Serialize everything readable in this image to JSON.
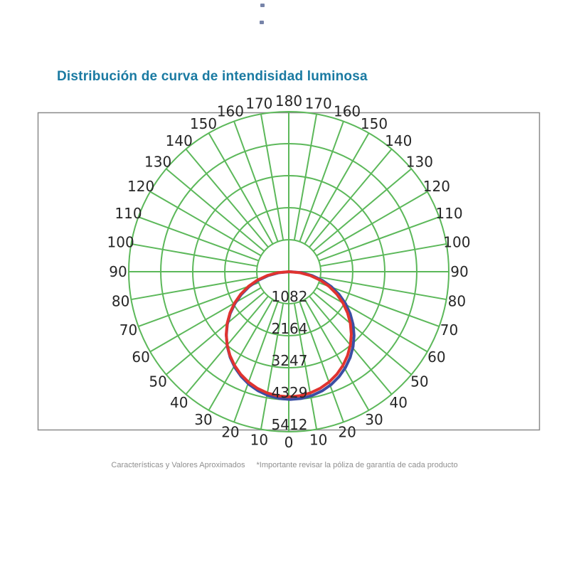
{
  "title": {
    "text": "Distribución de curva de intendisidad luminosa",
    "color": "#1a7aa2"
  },
  "artifacts": {
    "speck_glyph": "▪",
    "speck_count": 2
  },
  "frame": {
    "color": "#8a8a8a"
  },
  "footer": {
    "note_left": "Características y Valores Aproximados",
    "note_right": "*Importante revisar la póliza de garantía de cada producto",
    "color": "#8f8f8f"
  },
  "chart_data": {
    "type": "polar",
    "title": "Distribución de curva de intendisidad luminosa",
    "angle_unit": "degrees",
    "angle_zero_position": "bottom",
    "angle_ticks_deg": [
      0,
      10,
      20,
      30,
      40,
      50,
      60,
      70,
      80,
      90,
      100,
      110,
      120,
      130,
      140,
      150,
      160,
      170,
      180
    ],
    "angle_ticks_mirrored": true,
    "spoke_step_deg": 10,
    "radial_ticks": [
      1082,
      2164,
      3247,
      4329,
      5412
    ],
    "radial_max": 5412,
    "grid": true,
    "grid_color": "#5cb85a",
    "label_color": "#262626",
    "legend": "none",
    "series": [
      {
        "name": "curve-blue",
        "color": "#3b4ea3",
        "symmetric_about_vertical_axis": true,
        "angles_deg": [
          0,
          5,
          10,
          15,
          20,
          25,
          30,
          35,
          40,
          45,
          50,
          55,
          60,
          65,
          70,
          75,
          80,
          85,
          90
        ],
        "values": [
          4320,
          4304,
          4254,
          4173,
          4060,
          3915,
          3741,
          3539,
          3309,
          3055,
          2777,
          2478,
          2160,
          1826,
          1478,
          1118,
          750,
          377,
          0
        ]
      },
      {
        "name": "curve-red",
        "color": "#e03330",
        "symmetric_about_vertical_axis": true,
        "angles_deg": [
          0,
          5,
          10,
          15,
          20,
          25,
          30,
          35,
          40,
          45,
          50,
          55,
          60,
          65,
          70,
          75,
          80,
          85,
          90
        ],
        "values": [
          4230,
          4214,
          4166,
          4086,
          3975,
          3834,
          3663,
          3465,
          3240,
          2991,
          2719,
          2426,
          2115,
          1788,
          1447,
          1095,
          734,
          369,
          0
        ]
      }
    ]
  }
}
